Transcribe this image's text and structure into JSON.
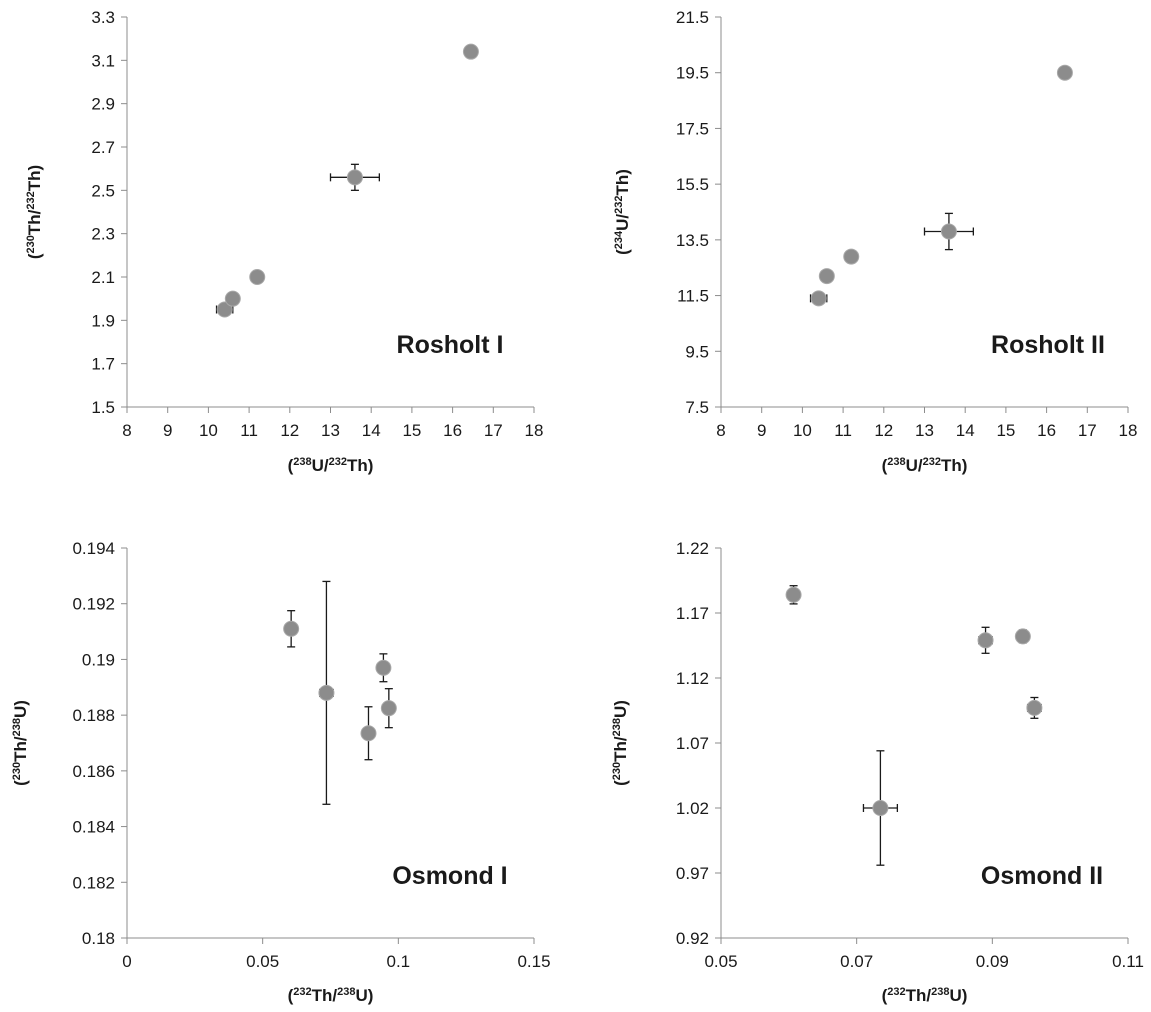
{
  "chart_data": [
    {
      "type": "scatter",
      "title": "Rosholt I",
      "xlabel": {
        "pre": "(",
        "sup1": "238",
        "mid": "U/",
        "sup2": "232",
        "post": "Th)"
      },
      "ylabel": {
        "pre": "(",
        "sup1": "230",
        "mid": "Th/",
        "sup2": "232",
        "post": "Th)"
      },
      "xlim": [
        8,
        18
      ],
      "ylim": [
        1.5,
        3.3
      ],
      "xticks": [
        8,
        9,
        10,
        11,
        12,
        13,
        14,
        15,
        16,
        17,
        18
      ],
      "yticks": [
        1.5,
        1.7,
        1.9,
        2.1,
        2.3,
        2.5,
        2.7,
        2.9,
        3.1,
        3.3
      ],
      "xtick_labels": [
        "8",
        "9",
        "10",
        "11",
        "12",
        "13",
        "14",
        "15",
        "16",
        "17",
        "18"
      ],
      "ytick_labels": [
        "1.5",
        "1.7",
        "1.9",
        "2.1",
        "2.3",
        "2.5",
        "2.7",
        "2.9",
        "3.1",
        "3.3"
      ],
      "points": [
        {
          "x": 10.4,
          "y": 1.95,
          "xerr": 0.2,
          "yerr": 0.025
        },
        {
          "x": 10.6,
          "y": 2.0,
          "xerr": 0.1,
          "yerr": 0.015
        },
        {
          "x": 11.2,
          "y": 2.1,
          "xerr": 0.1,
          "yerr": 0.015
        },
        {
          "x": 13.6,
          "y": 2.56,
          "xerr": 0.6,
          "yerr": 0.06
        },
        {
          "x": 16.45,
          "y": 3.14,
          "xerr": 0.1,
          "yerr": 0.015
        }
      ],
      "grid": false,
      "marker_color": "#8c8c8c",
      "axis_color": "#8c8c8c"
    },
    {
      "type": "scatter",
      "title": "Rosholt II",
      "xlabel": {
        "pre": "(",
        "sup1": "238",
        "mid": "U/",
        "sup2": "232",
        "post": "Th)"
      },
      "ylabel": {
        "pre": "(",
        "sup1": "234",
        "mid": "U/",
        "sup2": "232",
        "post": "Th)"
      },
      "xlim": [
        8,
        18
      ],
      "ylim": [
        7.5,
        21.5
      ],
      "xticks": [
        8,
        9,
        10,
        11,
        12,
        13,
        14,
        15,
        16,
        17,
        18
      ],
      "yticks": [
        7.5,
        9.5,
        11.5,
        13.5,
        15.5,
        17.5,
        19.5,
        21.5
      ],
      "xtick_labels": [
        "8",
        "9",
        "10",
        "11",
        "12",
        "13",
        "14",
        "15",
        "16",
        "17",
        "18"
      ],
      "ytick_labels": [
        "7.5",
        "9.5",
        "11.5",
        "13.5",
        "15.5",
        "17.5",
        "19.5",
        "21.5"
      ],
      "points": [
        {
          "x": 10.4,
          "y": 11.4,
          "xerr": 0.2,
          "yerr": 0.2
        },
        {
          "x": 10.6,
          "y": 12.2,
          "xerr": 0.1,
          "yerr": 0.1
        },
        {
          "x": 11.2,
          "y": 12.9,
          "xerr": 0.1,
          "yerr": 0.1
        },
        {
          "x": 13.6,
          "y": 13.8,
          "xerr": 0.6,
          "yerr": 0.65
        },
        {
          "x": 16.45,
          "y": 19.5,
          "xerr": 0.1,
          "yerr": 0.1
        }
      ],
      "grid": false,
      "marker_color": "#8c8c8c",
      "axis_color": "#8c8c8c"
    },
    {
      "type": "scatter",
      "title": "Osmond I",
      "xlabel": {
        "pre": "(",
        "sup1": "232",
        "mid": "Th/",
        "sup2": "238",
        "post": "U)"
      },
      "ylabel": {
        "pre": "(",
        "sup1": "230",
        "mid": "Th/",
        "sup2": "238",
        "post": "U)"
      },
      "xlim": [
        0,
        0.15
      ],
      "ylim": [
        0.18,
        0.194
      ],
      "xticks": [
        0,
        0.05,
        0.1,
        0.15
      ],
      "yticks": [
        0.18,
        0.182,
        0.184,
        0.186,
        0.188,
        0.19,
        0.192,
        0.194
      ],
      "xtick_labels": [
        "0",
        "0.05",
        "0.1",
        "0.15"
      ],
      "ytick_labels": [
        "0.18",
        "0.182",
        "0.184",
        "0.186",
        "0.188",
        "0.19",
        "0.192",
        "0.194"
      ],
      "points": [
        {
          "x": 0.0605,
          "y": 0.1911,
          "xerr": 0.001,
          "yerr": 0.00065
        },
        {
          "x": 0.0735,
          "y": 0.1888,
          "xerr": 0.0025,
          "yerr": 0.004
        },
        {
          "x": 0.089,
          "y": 0.18735,
          "xerr": 0.001,
          "yerr": 0.00095
        },
        {
          "x": 0.0945,
          "y": 0.1897,
          "xerr": 0.001,
          "yerr": 0.0005
        },
        {
          "x": 0.0965,
          "y": 0.18825,
          "xerr": 0.001,
          "yerr": 0.0007
        }
      ],
      "grid": false,
      "marker_color": "#8c8c8c",
      "axis_color": "#8c8c8c"
    },
    {
      "type": "scatter",
      "title": "Osmond II",
      "xlabel": {
        "pre": "(",
        "sup1": "232",
        "mid": "Th/",
        "sup2": "238",
        "post": "U)"
      },
      "ylabel": {
        "pre": "(",
        "sup1": "230",
        "mid": "Th/",
        "sup2": "238",
        "post": "U)"
      },
      "xlim": [
        0.05,
        0.11
      ],
      "ylim": [
        0.92,
        1.22
      ],
      "xticks": [
        0.05,
        0.07,
        0.09,
        0.11
      ],
      "yticks": [
        0.92,
        0.97,
        1.02,
        1.07,
        1.12,
        1.17,
        1.22
      ],
      "xtick_labels": [
        "0.05",
        "0.07",
        "0.09",
        "0.11"
      ],
      "ytick_labels": [
        "0.92",
        "0.97",
        "1.02",
        "1.07",
        "1.12",
        "1.17",
        "1.22"
      ],
      "points": [
        {
          "x": 0.0607,
          "y": 1.184,
          "xerr": 0.0005,
          "yerr": 0.007
        },
        {
          "x": 0.0735,
          "y": 1.02,
          "xerr": 0.0025,
          "yerr": 0.044
        },
        {
          "x": 0.089,
          "y": 1.149,
          "xerr": 0.001,
          "yerr": 0.01
        },
        {
          "x": 0.0945,
          "y": 1.152,
          "xerr": 0.0007,
          "yerr": 0.005
        },
        {
          "x": 0.0962,
          "y": 1.097,
          "xerr": 0.001,
          "yerr": 0.008
        }
      ],
      "grid": false,
      "marker_color": "#8c8c8c",
      "axis_color": "#8c8c8c"
    }
  ]
}
